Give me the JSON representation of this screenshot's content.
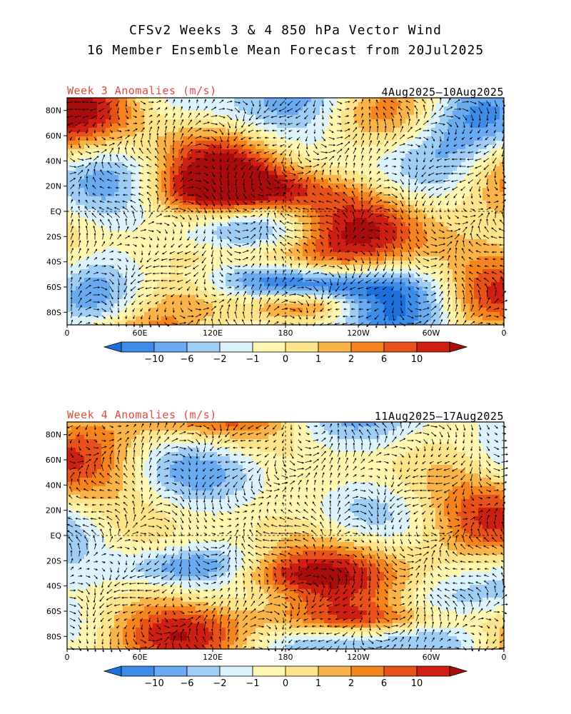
{
  "title_line1": "CFSv2 Weeks 3 & 4 850 hPa Vector Wind",
  "title_line2": "16 Member Ensemble Mean Forecast from 20Jul2025",
  "panels": [
    {
      "label": "Week 3 Anomalies (m/s)",
      "dates": "4Aug2025—10Aug2025"
    },
    {
      "label": "Week 4 Anomalies (m/s)",
      "dates": "11Aug2025—17Aug2025"
    }
  ],
  "lat_labels": [
    "80N",
    "60N",
    "40N",
    "20N",
    "EQ",
    "20S",
    "40S",
    "60S",
    "80S"
  ],
  "lon_labels": [
    "0",
    "60E",
    "120E",
    "180",
    "120W",
    "60W",
    "0"
  ],
  "colorbar": {
    "ticks": [
      "−10",
      "−6",
      "−2",
      "−1",
      "0",
      "1",
      "2",
      "6",
      "10"
    ],
    "colors": [
      "#1e6fde",
      "#3c8ce8",
      "#6aaaf0",
      "#9ecdf6",
      "#dcf3fb",
      "#fff6b0",
      "#fde48a",
      "#f9b348",
      "#f5841e",
      "#e8511a",
      "#cf1e12",
      "#a80d0b"
    ]
  },
  "colors": {
    "title_accent": "#e8473c"
  }
}
